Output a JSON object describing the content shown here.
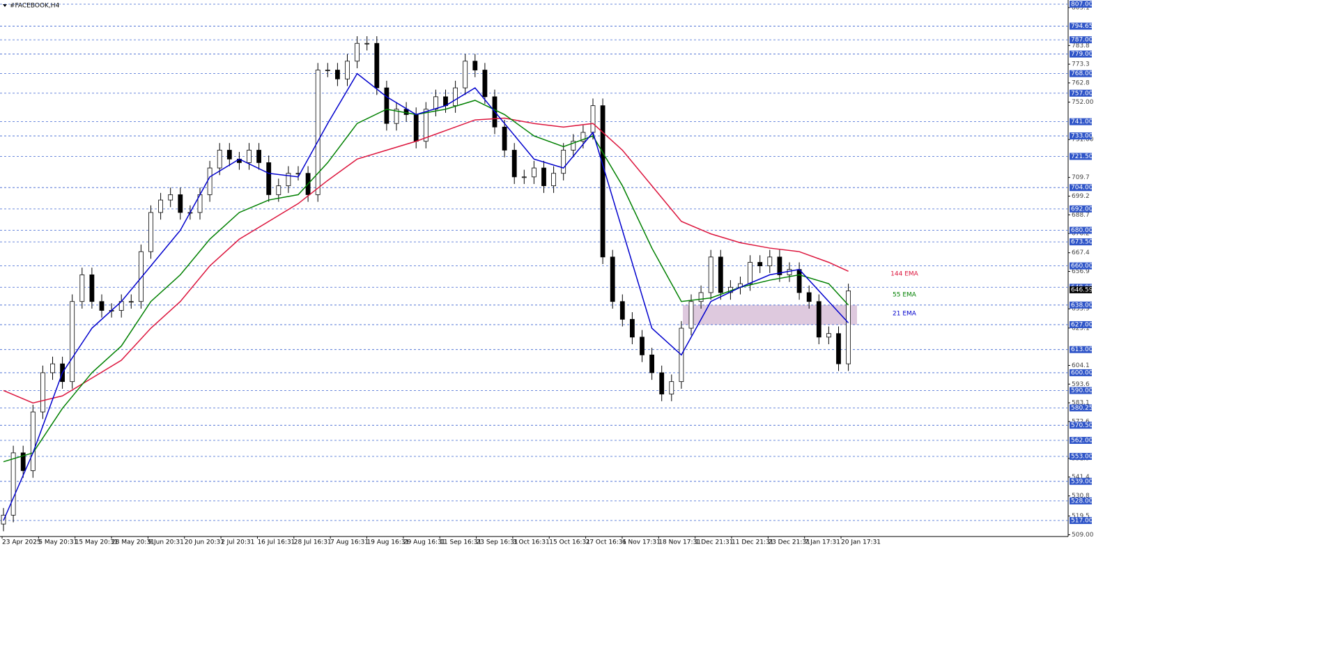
{
  "chart_data": {
    "type": "candlestick",
    "title": "#FACEBOOK,H4",
    "ylim": [
      508,
      809.35
    ],
    "ohlc": [
      [
        515,
        524,
        511,
        520
      ],
      [
        520,
        559,
        516,
        555
      ],
      [
        555,
        559,
        541,
        545
      ],
      [
        545,
        582,
        541,
        578
      ],
      [
        578,
        604,
        574,
        600
      ],
      [
        600,
        609,
        596,
        605
      ],
      [
        605,
        609,
        591,
        595
      ],
      [
        595,
        644,
        591,
        640
      ],
      [
        640,
        659,
        636,
        655
      ],
      [
        655,
        659,
        636,
        640
      ],
      [
        640,
        644,
        631,
        635
      ],
      [
        635,
        639,
        631,
        635
      ],
      [
        635,
        644,
        631,
        640
      ],
      [
        640,
        644,
        636,
        640
      ],
      [
        640,
        672,
        636,
        668
      ],
      [
        668,
        694,
        664,
        690
      ],
      [
        690,
        701,
        686,
        697
      ],
      [
        697,
        704,
        693,
        700
      ],
      [
        700,
        704,
        686,
        690
      ],
      [
        690,
        694,
        686,
        690
      ],
      [
        690,
        704,
        686,
        700
      ],
      [
        700,
        719,
        696,
        715
      ],
      [
        715,
        729,
        711,
        725
      ],
      [
        725,
        729,
        716,
        720
      ],
      [
        720,
        724,
        714,
        718
      ],
      [
        718,
        729,
        714,
        725
      ],
      [
        725,
        729,
        714,
        718
      ],
      [
        718,
        722,
        696,
        700
      ],
      [
        700,
        709,
        696,
        705
      ],
      [
        705,
        716,
        701,
        712
      ],
      [
        712,
        716,
        708,
        712
      ],
      [
        712,
        716,
        696,
        700
      ],
      [
        700,
        774,
        696,
        770
      ],
      [
        770,
        774,
        766,
        770
      ],
      [
        770,
        774,
        761,
        765
      ],
      [
        765,
        779,
        761,
        775
      ],
      [
        775,
        789,
        771,
        785
      ],
      [
        785,
        789,
        781,
        785
      ],
      [
        785,
        789,
        756,
        760
      ],
      [
        760,
        764,
        736,
        740
      ],
      [
        740,
        752,
        736,
        748
      ],
      [
        748,
        752,
        741,
        745
      ],
      [
        745,
        749,
        726,
        730
      ],
      [
        730,
        752,
        726,
        748
      ],
      [
        748,
        759,
        744,
        755
      ],
      [
        755,
        759,
        746,
        750
      ],
      [
        750,
        764,
        746,
        760
      ],
      [
        760,
        779,
        756,
        775
      ],
      [
        775,
        779,
        766,
        770
      ],
      [
        770,
        774,
        751,
        755
      ],
      [
        755,
        759,
        734,
        738
      ],
      [
        738,
        742,
        721,
        725
      ],
      [
        725,
        729,
        706,
        710
      ],
      [
        710,
        714,
        706,
        710
      ],
      [
        710,
        719,
        706,
        715
      ],
      [
        715,
        719,
        701,
        705
      ],
      [
        705,
        716,
        701,
        712
      ],
      [
        712,
        729,
        708,
        725
      ],
      [
        725,
        734,
        721,
        730
      ],
      [
        730,
        739,
        726,
        735
      ],
      [
        735,
        754,
        731,
        750
      ],
      [
        750,
        754,
        661,
        665
      ],
      [
        665,
        669,
        636,
        640
      ],
      [
        640,
        644,
        626,
        630
      ],
      [
        630,
        634,
        616,
        620
      ],
      [
        620,
        624,
        606,
        610
      ],
      [
        610,
        614,
        596,
        600
      ],
      [
        600,
        604,
        584,
        588
      ],
      [
        588,
        599,
        584,
        595
      ],
      [
        595,
        629,
        591,
        625
      ],
      [
        625,
        644,
        621,
        640
      ],
      [
        640,
        649,
        636,
        645
      ],
      [
        645,
        669,
        641,
        665
      ],
      [
        665,
        669,
        641,
        645
      ],
      [
        645,
        652,
        641,
        648
      ],
      [
        648,
        654,
        644,
        650
      ],
      [
        650,
        666,
        646,
        662
      ],
      [
        662,
        666,
        656,
        660
      ],
      [
        660,
        669,
        656,
        665
      ],
      [
        665,
        669,
        651,
        655
      ],
      [
        655,
        662,
        651,
        658
      ],
      [
        658,
        662,
        641,
        645
      ],
      [
        645,
        649,
        636,
        640
      ],
      [
        640,
        644,
        616,
        620
      ],
      [
        620,
        626,
        616,
        622
      ],
      [
        622,
        626,
        601,
        605
      ],
      [
        605,
        650,
        601,
        646
      ]
    ],
    "ema_x": [
      0,
      3,
      6,
      9,
      12,
      15,
      18,
      21,
      24,
      27,
      30,
      33,
      36,
      39,
      42,
      45,
      48,
      51,
      54,
      57,
      60,
      63,
      66,
      69,
      72,
      75,
      78,
      81,
      84,
      86
    ],
    "ema": [
      {
        "name": "144 EMA",
        "color": "#dc143c",
        "values": [
          590,
          583,
          587,
          597,
          607,
          625,
          640,
          660,
          675,
          685,
          695,
          708,
          720,
          725,
          730,
          736,
          742,
          743,
          740,
          738,
          740,
          725,
          705,
          685,
          678,
          673,
          670,
          668,
          662,
          657
        ]
      },
      {
        "name": "55 EMA",
        "color": "#008000",
        "values": [
          550,
          555,
          580,
          600,
          615,
          640,
          655,
          675,
          690,
          697,
          700,
          718,
          740,
          748,
          745,
          748,
          753,
          745,
          733,
          727,
          733,
          705,
          670,
          640,
          642,
          648,
          652,
          655,
          650,
          638
        ]
      },
      {
        "name": "21 EMA",
        "color": "#0000cd",
        "values": [
          517,
          555,
          600,
          625,
          640,
          660,
          680,
          710,
          720,
          712,
          710,
          740,
          768,
          755,
          745,
          750,
          760,
          740,
          720,
          715,
          735,
          680,
          625,
          610,
          640,
          648,
          655,
          658,
          640,
          628
        ]
      }
    ],
    "zone": [
      627,
      638
    ],
    "levels": [
      {
        "value": 807,
        "label": "807.00"
      },
      794.65,
      {
        "value": 787,
        "label": "787.00"
      },
      {
        "value": 779,
        "label": "779.00"
      },
      {
        "value": 768,
        "label": "768.00"
      },
      {
        "value": 757,
        "label": "757.00"
      },
      {
        "value": 741,
        "label": "741.00"
      },
      {
        "value": 733,
        "label": "733.00"
      },
      {
        "value": 721.5,
        "label": "721.50"
      },
      {
        "value": 704,
        "label": "704.00"
      },
      {
        "value": 692,
        "label": "692.00"
      },
      {
        "value": 680,
        "label": "680.00"
      },
      {
        "value": 673.5,
        "label": "673.50"
      },
      {
        "value": 660,
        "label": "660.00"
      },
      {
        "value": 648,
        "label": "648.00"
      },
      {
        "value": 638,
        "label": "638.00"
      },
      {
        "value": 627,
        "label": "627.00"
      },
      {
        "value": 613,
        "label": "613.00"
      },
      {
        "value": 600,
        "label": "600.00"
      },
      {
        "value": 590,
        "label": "590.00"
      },
      580.25,
      {
        "value": 570.5,
        "label": "570.50"
      },
      {
        "value": 562,
        "label": "562.00"
      },
      {
        "value": 553,
        "label": "553.00"
      },
      {
        "value": 539,
        "label": "539.00"
      },
      {
        "value": 528,
        "label": "528.00"
      },
      {
        "value": 517,
        "label": "517.00"
      }
    ],
    "yticks": [
      805.1,
      783.8,
      773.3,
      762.8,
      {
        "value": 752,
        "label": "752.00"
      },
      {
        "value": 731,
        "label": "731.00"
      },
      709.7,
      699.2,
      688.7,
      678.2,
      667.4,
      656.9,
      635.9,
      625.1,
      604.1,
      593.6,
      583.1,
      572.6,
      551.9,
      541.4,
      530.8,
      519.5,
      {
        "value": 509,
        "label": "509.00"
      }
    ],
    "last_price": 646.59,
    "x_labels": [
      "23 Apr 2025",
      "5 May 20:31",
      "15 May 20:31",
      "28 May 20:31",
      "9 Jun 20:31",
      "20 Jun 20:31",
      "2 Jul 20:31",
      "16 Jul 16:31",
      "28 Jul 16:31",
      "7 Aug 16:31",
      "19 Aug 16:31",
      "29 Aug 16:31",
      "11 Sep 16:31",
      "23 Sep 16:31",
      "3 Oct 16:31",
      "15 Oct 16:31",
      "27 Oct 16:31",
      "6 Nov 17:31",
      "18 Nov 17:31",
      "1 Dec 21:31",
      "11 Dec 21:31",
      "23 Dec 21:31",
      "7 Jan 17:31",
      "20 Jan 17:31"
    ]
  }
}
